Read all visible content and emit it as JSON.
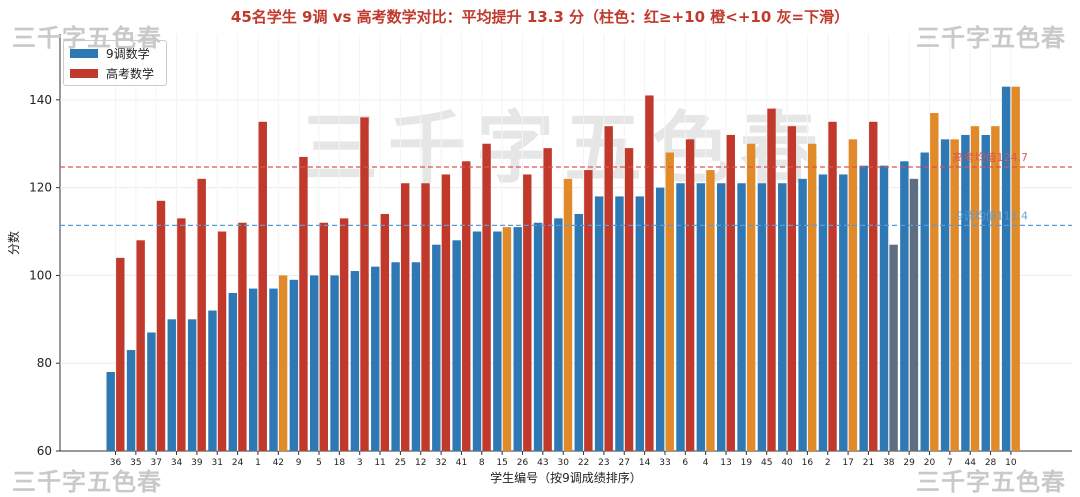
{
  "watermark": {
    "text": "三千字五色春"
  },
  "colors": {
    "blue": "#2e78b4",
    "red": "#c0392b",
    "orange": "#e08a2a",
    "gray": "#5c6e80",
    "mean_red": "#d9534f",
    "mean_blue": "#5b9bd5"
  },
  "chart_data": {
    "type": "bar",
    "title": "45名学生 9调 vs 高考数学对比：平均提升 13.3 分（柱色：红≥+10 橙<+10 灰=下滑）",
    "xlabel": "学生编号（按9调成绩排序）",
    "ylabel": "分数",
    "ylim": [
      60,
      155
    ],
    "yticks": [
      60,
      80,
      100,
      120,
      140
    ],
    "grid": true,
    "legend_position": "top-left",
    "categories": [
      "36",
      "35",
      "37",
      "34",
      "39",
      "31",
      "24",
      "1",
      "42",
      "9",
      "5",
      "18",
      "3",
      "11",
      "25",
      "12",
      "32",
      "41",
      "8",
      "15",
      "26",
      "43",
      "30",
      "22",
      "23",
      "27",
      "14",
      "33",
      "6",
      "4",
      "13",
      "19",
      "45",
      "40",
      "16",
      "2",
      "17",
      "21",
      "38",
      "29",
      "20",
      "7",
      "44",
      "28",
      "10"
    ],
    "series": [
      {
        "name": "9调数学",
        "values": [
          78,
          83,
          87,
          90,
          90,
          92,
          96,
          97,
          97,
          99,
          100,
          100,
          101,
          102,
          103,
          103,
          107,
          108,
          110,
          110,
          111,
          112,
          113,
          114,
          118,
          118,
          118,
          120,
          121,
          121,
          121,
          121,
          121,
          121,
          122,
          123,
          123,
          125,
          125,
          126,
          128,
          131,
          132,
          132,
          143
        ]
      },
      {
        "name": "高考数学",
        "values": [
          104,
          108,
          117,
          113,
          122,
          110,
          112,
          135,
          100,
          127,
          112,
          113,
          136,
          114,
          121,
          121,
          123,
          126,
          130,
          111,
          123,
          129,
          122,
          124,
          134,
          129,
          141,
          128,
          131,
          124,
          132,
          130,
          138,
          134,
          130,
          135,
          131,
          135,
          107,
          122,
          137,
          131,
          134,
          134,
          143
        ]
      }
    ],
    "annotations": [
      {
        "text": "高考均值124.7",
        "value": 124.7
      },
      {
        "text": "9调均值111.4",
        "value": 111.4
      }
    ]
  }
}
